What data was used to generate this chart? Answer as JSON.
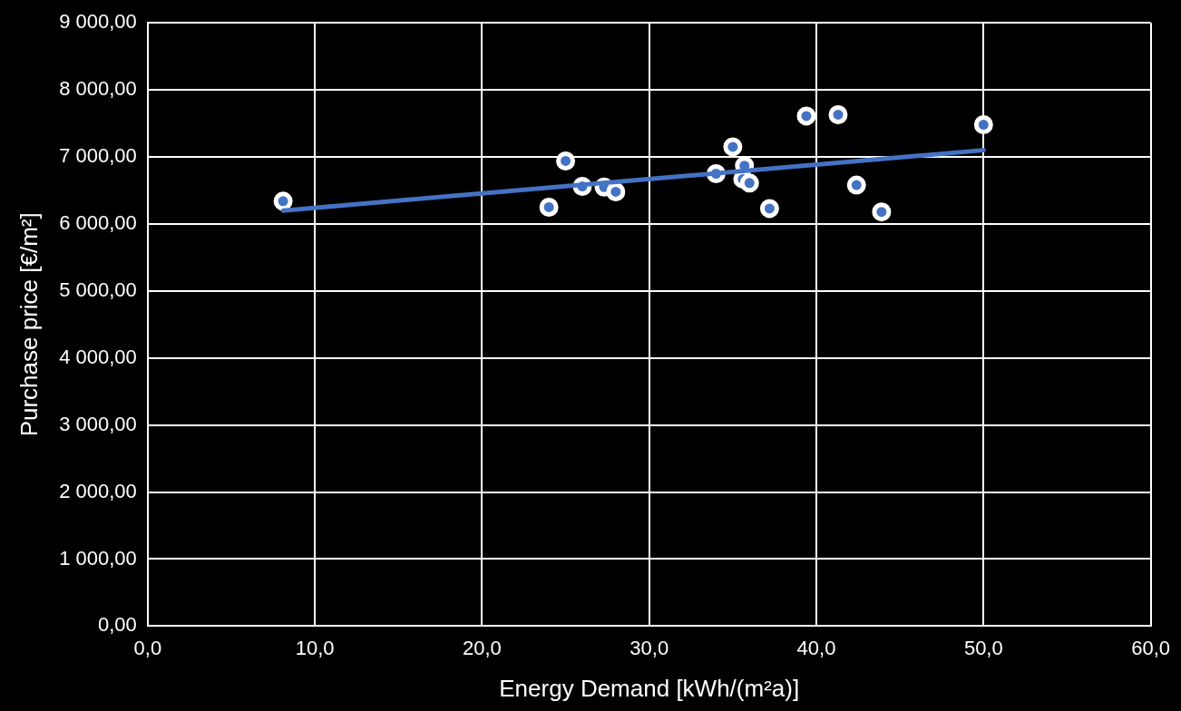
{
  "chart_data": {
    "type": "scatter",
    "xlabel": "Energy Demand [kWh/(m²a)]",
    "ylabel": "Purchase price [€/m²]",
    "series": [
      {
        "color": "#4472c4",
        "x": [
          8.1,
          24.0,
          25.0,
          26.0,
          27.3,
          28.0,
          34.0,
          35.0,
          35.7,
          35.6,
          36.0,
          37.2,
          39.4,
          41.3,
          42.4,
          43.9,
          50.0
        ],
        "values": [
          6340,
          6250,
          6940,
          6560,
          6550,
          6480,
          6750,
          7150,
          6870,
          6670,
          6610,
          6230,
          7610,
          7630,
          6580,
          6180,
          7480
        ]
      },
      {
        "type": "line",
        "marker": "none",
        "color": "#4472c4",
        "x": [
          8.1,
          50.0
        ],
        "values": [
          6200,
          7100
        ]
      }
    ],
    "xlim": [
      0,
      60
    ],
    "ylim": [
      0,
      9000
    ],
    "xticks": [
      {
        "value": 0,
        "label": "0,0"
      },
      {
        "value": 10,
        "label": "10,0"
      },
      {
        "value": 20,
        "label": "20,0"
      },
      {
        "value": 30,
        "label": "30,0"
      },
      {
        "value": 40,
        "label": "40,0"
      },
      {
        "value": 50,
        "label": "50,0"
      },
      {
        "value": 60,
        "label": "60,0"
      }
    ],
    "yticks": [
      {
        "value": 0,
        "label": "0,00"
      },
      {
        "value": 1000,
        "label": "1 000,00"
      },
      {
        "value": 2000,
        "label": "2 000,00"
      },
      {
        "value": 3000,
        "label": "3 000,00"
      },
      {
        "value": 4000,
        "label": "4 000,00"
      },
      {
        "value": 5000,
        "label": "5 000,00"
      },
      {
        "value": 6000,
        "label": "6 000,00"
      },
      {
        "value": 7000,
        "label": "7 000,00"
      },
      {
        "value": 8000,
        "label": "8 000,00"
      },
      {
        "value": 9000,
        "label": "9 000,00"
      }
    ],
    "grid": true,
    "marker": "circle",
    "legend": false
  }
}
